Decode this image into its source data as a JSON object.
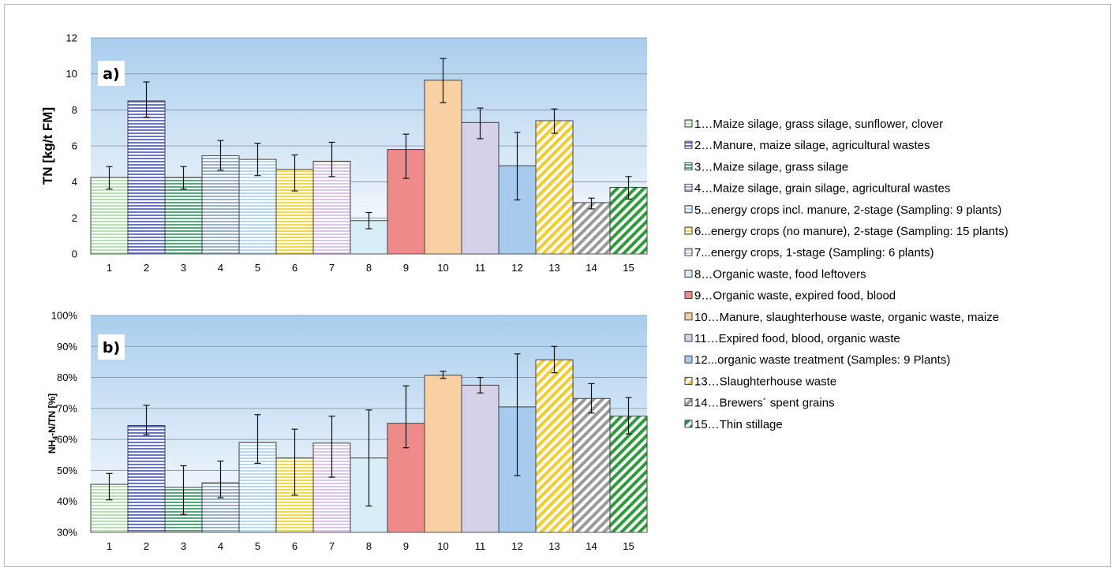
{
  "chart_data": [
    {
      "type": "bar",
      "panel_label": "a)",
      "ylabel": "TN [kg/t FM]",
      "ylim": [
        0,
        12
      ],
      "yticks": [
        0,
        2,
        4,
        6,
        8,
        10,
        12
      ],
      "ytick_labels": [
        "0",
        "2",
        "4",
        "6",
        "8",
        "10",
        "12"
      ],
      "grid": true,
      "categories": [
        "1",
        "2",
        "3",
        "4",
        "5",
        "6",
        "7",
        "8",
        "9",
        "10",
        "11",
        "12",
        "13",
        "14",
        "15"
      ],
      "values": [
        4.25,
        8.5,
        4.25,
        5.45,
        5.25,
        4.7,
        5.15,
        1.85,
        5.8,
        9.65,
        7.3,
        4.9,
        7.4,
        2.85,
        3.7
      ],
      "error_low": [
        3.6,
        7.6,
        3.6,
        4.65,
        4.35,
        3.5,
        4.3,
        1.4,
        4.2,
        8.4,
        6.4,
        3.0,
        6.7,
        2.5,
        3.05
      ],
      "error_high": [
        4.85,
        9.55,
        4.85,
        6.3,
        6.15,
        5.5,
        6.2,
        2.3,
        6.65,
        10.85,
        8.1,
        6.75,
        8.05,
        3.1,
        4.3
      ]
    },
    {
      "type": "bar",
      "panel_label": "b)",
      "ylabel_main": "NH",
      "ylabel_sub": "4",
      "ylabel_rest": "-N/TN [%]",
      "ylim": [
        30,
        100
      ],
      "yticks": [
        30,
        40,
        50,
        60,
        70,
        80,
        90,
        100
      ],
      "ytick_labels": [
        "30%",
        "40%",
        "50%",
        "60%",
        "70%",
        "80%",
        "90%",
        "100%"
      ],
      "grid": true,
      "categories": [
        "1",
        "2",
        "3",
        "4",
        "5",
        "6",
        "7",
        "8",
        "9",
        "10",
        "11",
        "12",
        "13",
        "14",
        "15"
      ],
      "values": [
        45.5,
        64.5,
        44.5,
        46,
        59,
        54,
        58.8,
        54,
        65.2,
        80.7,
        77.5,
        70.5,
        85.7,
        73.2,
        67.5
      ],
      "error_low": [
        40.5,
        61.5,
        35.8,
        41.2,
        52.3,
        42,
        47.8,
        38.5,
        57.3,
        79.7,
        75,
        48.3,
        81.5,
        68.5,
        61.8
      ],
      "error_high": [
        49,
        71,
        51.5,
        53,
        68,
        63.3,
        67.5,
        69.5,
        77.3,
        82,
        80,
        87.6,
        90,
        78,
        73.5
      ]
    }
  ],
  "legend": [
    {
      "label": "1…Maize silage, grass silage, sunflower, clover",
      "color": "#b8e0b4",
      "pattern": "hstripe"
    },
    {
      "label": "2…Manure, maize silage, agricultural wastes",
      "color": "#6675c8",
      "pattern": "hstripe"
    },
    {
      "label": "3…Maize silage, grass silage",
      "color": "#54a880",
      "pattern": "hstripe"
    },
    {
      "label": "4…Maize silage, grain silage, agricultural wastes",
      "color": "#9cb0c8",
      "pattern": "hstripe"
    },
    {
      "label": "5...energy crops incl. manure, 2-stage (Sampling: 9 plants)",
      "color": "#b8d8f0",
      "pattern": "hstripe"
    },
    {
      "label": "6...energy crops (no manure), 2-stage (Sampling: 15 plants)",
      "color": "#f4d840",
      "pattern": "hstripe"
    },
    {
      "label": "7...energy crops, 1-stage (Sampling: 6 plants)",
      "color": "#dcc4e4",
      "pattern": "hstripe"
    },
    {
      "label": "8…Organic waste, food leftovers",
      "color": "#d8eef6",
      "pattern": "solid"
    },
    {
      "label": "9…Organic waste, expired food, blood",
      "color": "#ee8a8a",
      "pattern": "solid"
    },
    {
      "label": "10…Manure, slaughterhouse waste, organic waste, maize",
      "color": "#f8d0a4",
      "pattern": "solid"
    },
    {
      "label": "11…Expired food, blood, organic waste",
      "color": "#d6d2ea",
      "pattern": "solid"
    },
    {
      "label": "12...organic waste treatment (Samples: 9 Plants)",
      "color": "#a6cbec",
      "pattern": "solid"
    },
    {
      "label": "13…Slaughterhouse waste",
      "color": "#f4cc30",
      "pattern": "diag"
    },
    {
      "label": "14…Brewers´ spent grains",
      "color": "#9a9a9a",
      "pattern": "diag"
    },
    {
      "label": "15…Thin stillage",
      "color": "#2e9a3a",
      "pattern": "diag"
    }
  ]
}
